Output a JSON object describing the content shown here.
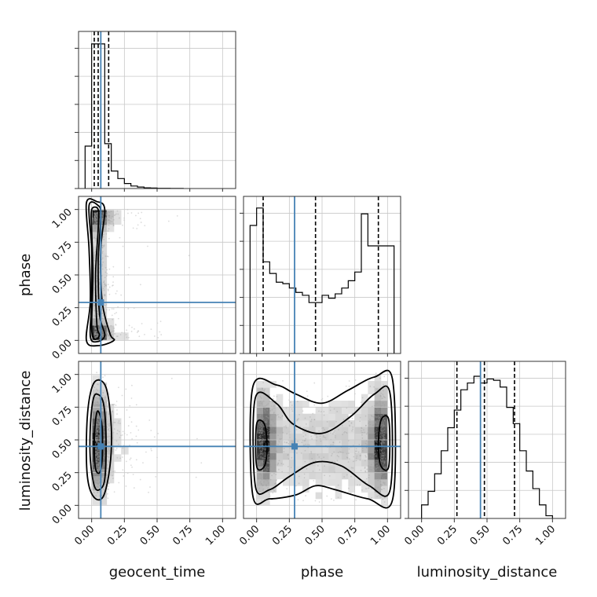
{
  "chart_data": {
    "type": "corner",
    "parameters": [
      "geocent_time",
      "phase",
      "luminosity_distance"
    ],
    "xlabels": [
      "geocent_time",
      "phase",
      "luminosity_distance"
    ],
    "ylabels": [
      "",
      "phase",
      "luminosity_distance"
    ],
    "ticks": [
      0.0,
      0.25,
      0.5,
      0.75,
      1.0
    ],
    "tick_labels": [
      "0.00",
      "0.25",
      "0.50",
      "0.75",
      "1.00"
    ],
    "range": [
      -0.1,
      1.1
    ],
    "grid": true,
    "colors": {
      "truth": "#4682b4",
      "hist": "#000000",
      "quantile": "#000000",
      "points": "#9a9a9a"
    },
    "truths": [
      0.07,
      0.29,
      0.45
    ],
    "quantiles": [
      [
        0.02,
        0.05,
        0.13
      ],
      [
        0.05,
        0.45,
        0.93
      ],
      [
        0.27,
        0.48,
        0.71
      ]
    ],
    "histograms": [
      {
        "param": "geocent_time",
        "bin_edges": [
          -0.05,
          0.0,
          0.05,
          0.1,
          0.15,
          0.2,
          0.25,
          0.3,
          0.35,
          0.4,
          0.45,
          0.5,
          0.55,
          0.6,
          0.65,
          0.7
        ],
        "counts": [
          17,
          58,
          58,
          18,
          7,
          4,
          2,
          1,
          0.6,
          0.3,
          0.2,
          0.1,
          0.1,
          0.05,
          0.05
        ],
        "ymax": 63
      },
      {
        "param": "phase",
        "bin_edges": [
          -0.05,
          0.0,
          0.05,
          0.1,
          0.15,
          0.2,
          0.25,
          0.3,
          0.35,
          0.4,
          0.45,
          0.5,
          0.55,
          0.6,
          0.65,
          0.7,
          0.75,
          0.8,
          0.85,
          0.9,
          0.95,
          1.0,
          1.05
        ],
        "counts": [
          0.88,
          1.0,
          0.63,
          0.55,
          0.49,
          0.48,
          0.45,
          0.42,
          0.4,
          0.35,
          0.35,
          0.4,
          0.38,
          0.41,
          0.45,
          0.5,
          0.56,
          0.96,
          0.74,
          0.74,
          0.74,
          0.74
        ],
        "ymax": 1.08
      },
      {
        "param": "luminosity_distance",
        "bin_edges": [
          0.0,
          0.05,
          0.1,
          0.15,
          0.2,
          0.25,
          0.3,
          0.35,
          0.4,
          0.45,
          0.5,
          0.55,
          0.6,
          0.65,
          0.7,
          0.75,
          0.8,
          0.85,
          0.9,
          0.95,
          1.0
        ],
        "counts": [
          0.1,
          0.2,
          0.33,
          0.5,
          0.67,
          0.8,
          0.95,
          1.0,
          1.05,
          1.0,
          1.03,
          1.02,
          0.97,
          0.82,
          0.7,
          0.5,
          0.35,
          0.22,
          0.1,
          0.02
        ],
        "ymax": 1.16
      }
    ],
    "panels_2d": [
      {
        "x": "geocent_time",
        "y": "phase",
        "position": [
          1,
          0
        ]
      },
      {
        "x": "geocent_time",
        "y": "luminosity_distance",
        "position": [
          2,
          0
        ]
      },
      {
        "x": "phase",
        "y": "luminosity_distance",
        "position": [
          2,
          1
        ]
      }
    ]
  }
}
